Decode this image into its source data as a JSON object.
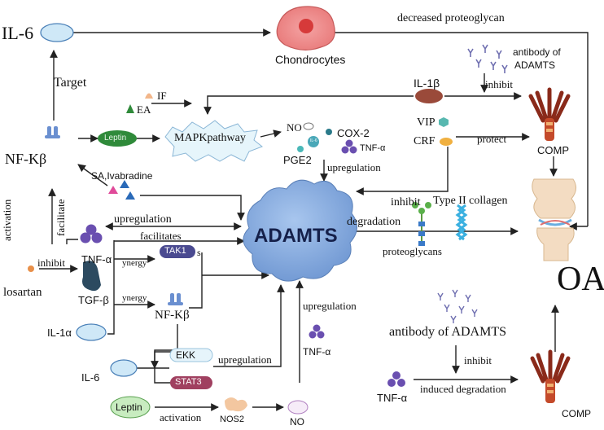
{
  "labels": {
    "il6_top": "IL-6",
    "chondrocytes": "Chondrocytes",
    "decreased_proteoglycan": "decreased proteoglycan",
    "antibody_adamts_top_1": "antibody of",
    "antibody_adamts_top_2": "ADAMTS",
    "target": "Target",
    "il1b": "IL-1β",
    "inhibit_top": "inhibit",
    "if": "IF",
    "ea": "EA",
    "leptin_mid": "Leptin",
    "mapk": "MAPKpathway",
    "nfkb_left": "NF-Kβ",
    "no_mid": "NO",
    "cox2": "COX-2",
    "pge2": "PGE2",
    "tnfa_mid": "TNF-α",
    "il6_small": "IL-6",
    "vip": "VIP",
    "crf": "CRF",
    "protect": "protect",
    "comp_right": "COMP",
    "upregulation_mid": "upregulation",
    "sa_ivabradine": "SA,Ivabradine",
    "activation": "activation",
    "facilitate": "facilitate",
    "upregulation_left": "upregulation",
    "facilitates": "facilitates",
    "inhibit_center": "inhibit",
    "type2_collagen": "Type II collagen",
    "degradation": "degradation",
    "proteoglycans": "proteoglycans",
    "adamts_big": "ADAMTS",
    "oa": "OA",
    "inhibit_left": "inhibit",
    "tnfa_left": "TNF-α",
    "tak1": "TAK1",
    "tak1_s": "s",
    "synergy_1": "ynergy",
    "losartan": "losartan",
    "tgfb": "TGF-β",
    "synergy_2": "ynergy",
    "nfkb_mid": "NF-Kβ",
    "il1a": "IL-1α",
    "upregulation_lower": "upregulation",
    "tnfa_lower": "TNF-α",
    "antibody_adamts_bottom": "antibody of ADAMTS",
    "inhibit_bottom": "inhibit",
    "eck": "EKK",
    "stat3": "STAT3",
    "upregulation_bottom": "upregulation",
    "il6_bottom": "IL-6",
    "tnfa_bottom": "TNF-α",
    "induced_degradation": "induced degradation",
    "comp_bottom": "COMP",
    "leptin_bottom": "Leptin",
    "activation_bottom": "activation",
    "nos2": "NOS2",
    "no_bottom": "NO"
  },
  "colors": {
    "il6_cell": "#cfe8f7",
    "chondrocyte": "#e9787a",
    "leptin": "#2f8a3a",
    "leptin_light": "#c8ecc0",
    "adamts": "#7fa8dc",
    "il1b": "#9a4a3a",
    "tnf": "#6a4fb0",
    "receptor": "#6a8fd0",
    "comp": "#8a2a1a",
    "vip": "#58b8b0",
    "crf": "#f0b040",
    "tgfb": "#2c4a60",
    "tak1": "#4a4a90",
    "stat3": "#a04060",
    "nos2": "#f3c7a0",
    "sa_pink": "#e04a9a",
    "sa_blue": "#2a6ab8"
  }
}
